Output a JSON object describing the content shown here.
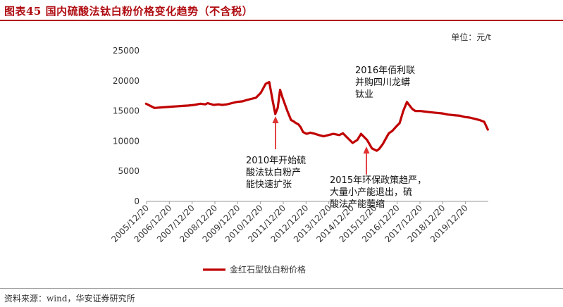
{
  "header": {
    "title": "图表45 国内硫酸法钛白粉价格变化趋势（不含税）"
  },
  "unit_label": "单位：元/t",
  "footer": {
    "source": "资料来源：wind，华安证券研究所"
  },
  "colors": {
    "series": "#c00000",
    "accent": "#b00d12",
    "arrow": "#e03030"
  },
  "chart_data": {
    "type": "line",
    "title": "",
    "xlabel": "",
    "ylabel": "",
    "ylim": [
      0,
      25000
    ],
    "yticks": [
      "0",
      "5000",
      "10000",
      "15000",
      "20000",
      "25000"
    ],
    "xticks": [
      "2005/12/20",
      "2006/12/20",
      "2007/12/20",
      "2008/12/20",
      "2009/12/20",
      "2010/12/20",
      "2011/12/20",
      "2012/12/20",
      "2013/12/20",
      "2014/12/20",
      "2015/12/20",
      "2016/12/20",
      "2017/12/20",
      "2018/12/20",
      "2019/12/20"
    ],
    "legend": {
      "position": "bottom",
      "label": "金红石型钛白粉价格"
    },
    "series": [
      {
        "name": "金红石型钛白粉价格",
        "x": [
          2005.95,
          2006.1,
          2006.3,
          2006.6,
          2006.95,
          2007.3,
          2007.7,
          2007.95,
          2008.2,
          2008.4,
          2008.5,
          2008.75,
          2008.95,
          2009.1,
          2009.3,
          2009.5,
          2009.7,
          2009.95,
          2010.1,
          2010.3,
          2010.5,
          2010.7,
          2010.9,
          2011.05,
          2011.2,
          2011.3,
          2011.4,
          2011.5,
          2011.6,
          2011.8,
          2011.95,
          2012.05,
          2012.15,
          2012.25,
          2012.35,
          2012.45,
          2012.6,
          2012.75,
          2012.95,
          2013.1,
          2013.3,
          2013.5,
          2013.7,
          2013.95,
          2014.1,
          2014.2,
          2014.35,
          2014.5,
          2014.7,
          2014.85,
          2014.95,
          2015.1,
          2015.3,
          2015.5,
          2015.6,
          2015.75,
          2015.9,
          2016.0,
          2016.15,
          2016.3,
          2016.45,
          2016.6,
          2016.75,
          2016.9,
          2016.98,
          2017.1,
          2017.3,
          2017.5,
          2017.7,
          2017.95,
          2018.2,
          2018.45,
          2018.7,
          2018.95,
          2019.15,
          2019.35,
          2019.55,
          2019.75,
          2019.95,
          2020.1
        ],
        "values": [
          16200,
          15900,
          15500,
          15600,
          15700,
          15800,
          15900,
          16000,
          16200,
          16100,
          16300,
          16000,
          16100,
          16000,
          16100,
          16300,
          16500,
          16600,
          16800,
          17000,
          17200,
          18000,
          19500,
          19800,
          16500,
          14500,
          15500,
          18500,
          17200,
          15000,
          13500,
          13300,
          13000,
          12800,
          12300,
          11500,
          11200,
          11400,
          11200,
          11000,
          10800,
          11000,
          11200,
          11000,
          11300,
          10900,
          10300,
          9700,
          10200,
          11200,
          10800,
          10200,
          8800,
          8400,
          8700,
          9500,
          10600,
          11300,
          11700,
          12400,
          13000,
          15000,
          16500,
          15700,
          15300,
          15000,
          15000,
          14900,
          14800,
          14700,
          14600,
          14400,
          14300,
          14200,
          14000,
          13900,
          13700,
          13500,
          13200,
          11900
        ]
      }
    ],
    "annotations": [
      {
        "text_lines": [
          "2016年佰利联",
          "并购四川龙蟒",
          "钛业"
        ]
      },
      {
        "text_lines": [
          "2010年开始硫",
          "酸法钛白粉产",
          "能快速扩张"
        ]
      },
      {
        "text_lines": [
          "2015年环保政策趋严，",
          "大量小产能退出，硫",
          "酸法产能萎缩"
        ]
      }
    ]
  }
}
